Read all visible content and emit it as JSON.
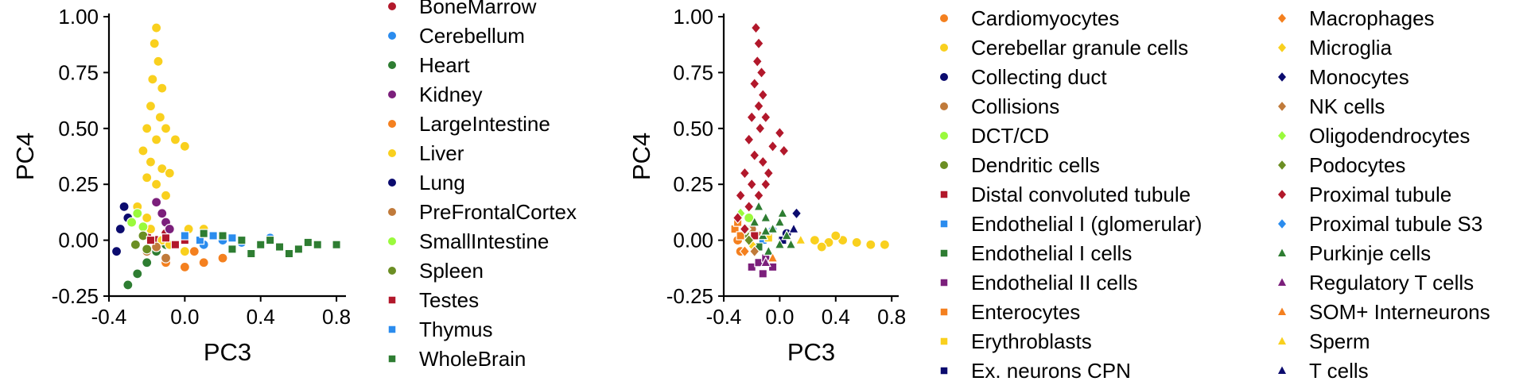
{
  "chart_data": [
    {
      "type": "scatter",
      "xlabel": "PC3",
      "ylabel": "PC4",
      "xlim": [
        -0.4,
        0.85
      ],
      "ylim": [
        -0.25,
        1.0
      ],
      "x_ticks": [
        "-0.4",
        "0.0",
        "0.4",
        "0.8"
      ],
      "x_tick_values": [
        -0.4,
        0.0,
        0.4,
        0.8
      ],
      "y_ticks": [
        "1.00",
        "0.75",
        "0.50",
        "0.25",
        "0.00",
        "-0.25"
      ],
      "y_tick_values": [
        1.0,
        0.75,
        0.5,
        0.25,
        0.0,
        -0.25
      ],
      "grid": false,
      "legend_position": "right",
      "legend": {
        "columns": 1,
        "marker": "mixed"
      },
      "series": [
        {
          "name": "BoneMarrow",
          "color": "#b2182b",
          "marker": "circle",
          "points": [
            [
              -0.2,
              0.02
            ],
            [
              -0.15,
              0.0
            ],
            [
              -0.1,
              0.03
            ]
          ]
        },
        {
          "name": "Cerebellum",
          "color": "#2b8cee",
          "marker": "circle",
          "points": [
            [
              0.1,
              -0.02
            ],
            [
              0.2,
              0.0
            ],
            [
              0.3,
              -0.01
            ],
            [
              0.45,
              0.01
            ]
          ]
        },
        {
          "name": "Heart",
          "color": "#2e7d32",
          "marker": "circle",
          "points": [
            [
              -0.3,
              -0.2
            ],
            [
              -0.25,
              -0.15
            ],
            [
              -0.2,
              -0.1
            ],
            [
              -0.15,
              -0.05
            ],
            [
              -0.1,
              -0.02
            ]
          ]
        },
        {
          "name": "Kidney",
          "color": "#7b1f7b",
          "marker": "circle",
          "points": [
            [
              -0.15,
              0.17
            ],
            [
              -0.12,
              0.12
            ],
            [
              -0.1,
              0.08
            ],
            [
              -0.08,
              0.05
            ]
          ]
        },
        {
          "name": "LargeIntestine",
          "color": "#f4801f",
          "marker": "circle",
          "points": [
            [
              -0.1,
              -0.1
            ],
            [
              0.0,
              -0.12
            ],
            [
              0.1,
              -0.1
            ],
            [
              0.2,
              -0.08
            ],
            [
              0.05,
              -0.05
            ]
          ]
        },
        {
          "name": "Liver",
          "color": "#f9d01e",
          "marker": "circle",
          "points": [
            [
              -0.15,
              0.95
            ],
            [
              -0.16,
              0.88
            ],
            [
              -0.14,
              0.8
            ],
            [
              -0.17,
              0.72
            ],
            [
              -0.12,
              0.68
            ],
            [
              -0.18,
              0.6
            ],
            [
              -0.13,
              0.55
            ],
            [
              -0.2,
              0.5
            ],
            [
              -0.15,
              0.45
            ],
            [
              -0.1,
              0.5
            ],
            [
              -0.05,
              0.45
            ],
            [
              0.0,
              0.42
            ],
            [
              -0.22,
              0.4
            ],
            [
              -0.18,
              0.35
            ],
            [
              -0.12,
              0.32
            ],
            [
              -0.08,
              0.3
            ],
            [
              -0.2,
              0.28
            ],
            [
              -0.15,
              0.25
            ],
            [
              -0.1,
              0.2
            ],
            [
              -0.25,
              0.15
            ],
            [
              -0.2,
              0.1
            ],
            [
              -0.18,
              0.05
            ],
            [
              -0.12,
              0.0
            ],
            [
              -0.08,
              -0.02
            ],
            [
              0.0,
              -0.05
            ],
            [
              0.1,
              0.05
            ],
            [
              0.02,
              0.05
            ]
          ]
        },
        {
          "name": "Lung",
          "color": "#0b0b6e",
          "marker": "circle",
          "points": [
            [
              -0.34,
              0.05
            ],
            [
              -0.32,
              0.15
            ],
            [
              -0.3,
              0.1
            ],
            [
              -0.36,
              -0.05
            ]
          ]
        },
        {
          "name": "PreFrontalCortex",
          "color": "#c07a3a",
          "marker": "circle",
          "points": [
            [
              -0.2,
              -0.05
            ],
            [
              -0.15,
              -0.03
            ],
            [
              -0.1,
              -0.08
            ]
          ]
        },
        {
          "name": "SmallIntestine",
          "color": "#9afa3c",
          "marker": "circle",
          "points": [
            [
              -0.25,
              0.12
            ],
            [
              -0.28,
              0.08
            ],
            [
              -0.22,
              0.06
            ]
          ]
        },
        {
          "name": "Spleen",
          "color": "#6b8e23",
          "marker": "circle",
          "points": [
            [
              -0.22,
              0.02
            ],
            [
              -0.26,
              -0.02
            ],
            [
              -0.2,
              -0.04
            ]
          ]
        },
        {
          "name": "Testes",
          "color": "#b2182b",
          "marker": "square",
          "points": [
            [
              -0.18,
              0.0
            ],
            [
              -0.1,
              0.01
            ],
            [
              0.0,
              0.0
            ],
            [
              -0.05,
              -0.02
            ]
          ]
        },
        {
          "name": "Thymus",
          "color": "#2b8cee",
          "marker": "square",
          "points": [
            [
              0.0,
              0.02
            ],
            [
              0.08,
              0.0
            ],
            [
              0.15,
              0.02
            ],
            [
              0.25,
              0.01
            ]
          ]
        },
        {
          "name": "WholeBrain",
          "color": "#2e7d32",
          "marker": "square",
          "points": [
            [
              0.1,
              0.03
            ],
            [
              0.2,
              0.02
            ],
            [
              0.3,
              0.0
            ],
            [
              0.4,
              -0.02
            ],
            [
              0.5,
              -0.03
            ],
            [
              0.6,
              -0.04
            ],
            [
              0.7,
              -0.02
            ],
            [
              0.8,
              -0.02
            ],
            [
              0.35,
              -0.06
            ],
            [
              0.55,
              -0.06
            ],
            [
              0.25,
              -0.04
            ],
            [
              0.45,
              0.0
            ],
            [
              0.65,
              -0.01
            ]
          ]
        }
      ]
    },
    {
      "type": "scatter",
      "xlabel": "PC3",
      "ylabel": "PC4",
      "xlim": [
        -0.4,
        0.85
      ],
      "ylim": [
        -0.25,
        1.0
      ],
      "x_ticks": [
        "-0.4",
        "0.0",
        "0.4",
        "0.8"
      ],
      "x_tick_values": [
        -0.4,
        0.0,
        0.4,
        0.8
      ],
      "y_ticks": [
        "1.00",
        "0.75",
        "0.50",
        "0.25",
        "0.00",
        "-0.25"
      ],
      "y_tick_values": [
        1.0,
        0.75,
        0.5,
        0.25,
        0.0,
        -0.25
      ],
      "grid": false,
      "legend_position": "right",
      "legend": {
        "columns": 2,
        "marker": "mixed"
      },
      "series": [
        {
          "name": "Cardiomyocytes",
          "color": "#f4801f",
          "marker": "circle",
          "points": [
            [
              -0.3,
              0.0
            ],
            [
              -0.28,
              -0.05
            ]
          ]
        },
        {
          "name": "Cerebellar granule cells",
          "color": "#f9d01e",
          "marker": "circle",
          "points": [
            [
              0.25,
              0.0
            ],
            [
              0.35,
              -0.01
            ],
            [
              0.45,
              0.0
            ],
            [
              0.55,
              -0.01
            ],
            [
              0.65,
              -0.02
            ],
            [
              0.75,
              -0.02
            ],
            [
              0.4,
              0.02
            ],
            [
              0.3,
              -0.03
            ]
          ]
        },
        {
          "name": "Collecting duct",
          "color": "#0b0b6e",
          "marker": "circle",
          "points": [
            [
              0.05,
              0.03
            ]
          ]
        },
        {
          "name": "Collisions",
          "color": "#c07a3a",
          "marker": "circle",
          "points": [
            [
              -0.2,
              0.05
            ],
            [
              -0.15,
              0.02
            ]
          ]
        },
        {
          "name": "DCT/CD",
          "color": "#9afa3c",
          "marker": "circle",
          "points": [
            [
              -0.22,
              0.1
            ]
          ]
        },
        {
          "name": "Dendritic cells",
          "color": "#6b8e23",
          "marker": "circle",
          "points": [
            [
              -0.25,
              0.03
            ]
          ]
        },
        {
          "name": "Distal convoluted tubule",
          "color": "#b2182b",
          "marker": "square",
          "points": [
            [
              -0.18,
              0.02
            ]
          ]
        },
        {
          "name": "Endothelial I (glomerular)",
          "color": "#2b8cee",
          "marker": "square",
          "points": [
            [
              -0.12,
              0.0
            ]
          ]
        },
        {
          "name": "Endothelial I cells",
          "color": "#2e7d32",
          "marker": "square",
          "points": [
            [
              -0.15,
              -0.03
            ]
          ]
        },
        {
          "name": "Endothelial II cells",
          "color": "#7b1f7b",
          "marker": "square",
          "points": [
            [
              -0.2,
              -0.12
            ],
            [
              -0.15,
              -0.1
            ],
            [
              -0.1,
              -0.08
            ],
            [
              -0.05,
              -0.12
            ],
            [
              -0.12,
              -0.15
            ]
          ]
        },
        {
          "name": "Enterocytes",
          "color": "#f4801f",
          "marker": "square",
          "points": [
            [
              -0.32,
              0.05
            ],
            [
              -0.3,
              0.08
            ],
            [
              -0.28,
              0.02
            ]
          ]
        },
        {
          "name": "Erythroblasts",
          "color": "#f9d01e",
          "marker": "square",
          "points": [
            [
              -0.08,
              0.01
            ]
          ]
        },
        {
          "name": "Ex. neurons CPN",
          "color": "#0b0b6e",
          "marker": "square",
          "points": [
            [
              0.02,
              0.0
            ]
          ]
        },
        {
          "name": "Macrophages",
          "color": "#f4801f",
          "marker": "diamond",
          "points": [
            [
              -0.25,
              -0.05
            ]
          ]
        },
        {
          "name": "Microglia",
          "color": "#f9d01e",
          "marker": "diamond",
          "points": [
            [
              -0.2,
              -0.02
            ]
          ]
        },
        {
          "name": "Monocytes",
          "color": "#0b0b6e",
          "marker": "diamond",
          "points": [
            [
              0.12,
              0.12
            ]
          ]
        },
        {
          "name": "NK cells",
          "color": "#c07a3a",
          "marker": "diamond",
          "points": [
            [
              -0.18,
              -0.05
            ]
          ]
        },
        {
          "name": "Oligodendrocytes",
          "color": "#9afa3c",
          "marker": "diamond",
          "points": [
            [
              -0.28,
              0.12
            ],
            [
              -0.24,
              0.05
            ]
          ]
        },
        {
          "name": "Podocytes",
          "color": "#6b8e23",
          "marker": "diamond",
          "points": [
            [
              -0.22,
              0.0
            ]
          ]
        },
        {
          "name": "Proximal tubule",
          "color": "#b2182b",
          "marker": "diamond",
          "points": [
            [
              -0.17,
              0.95
            ],
            [
              -0.15,
              0.88
            ],
            [
              -0.16,
              0.8
            ],
            [
              -0.13,
              0.75
            ],
            [
              -0.18,
              0.7
            ],
            [
              -0.12,
              0.65
            ],
            [
              -0.15,
              0.6
            ],
            [
              -0.2,
              0.55
            ],
            [
              -0.1,
              0.55
            ],
            [
              -0.14,
              0.5
            ],
            [
              0.0,
              0.48
            ],
            [
              -0.05,
              0.42
            ],
            [
              0.03,
              0.4
            ],
            [
              -0.22,
              0.45
            ],
            [
              -0.18,
              0.38
            ],
            [
              -0.12,
              0.35
            ],
            [
              -0.08,
              0.3
            ],
            [
              -0.25,
              0.3
            ],
            [
              -0.2,
              0.25
            ],
            [
              -0.15,
              0.2
            ],
            [
              -0.1,
              0.25
            ],
            [
              -0.28,
              0.2
            ],
            [
              -0.22,
              0.15
            ],
            [
              -0.3,
              0.1
            ],
            [
              -0.25,
              0.05
            ]
          ]
        },
        {
          "name": "Proximal tubule S3",
          "color": "#2b8cee",
          "marker": "diamond",
          "points": [
            [
              -0.05,
              0.05
            ]
          ]
        },
        {
          "name": "Purkinje cells",
          "color": "#2e7d32",
          "marker": "triangle",
          "points": [
            [
              -0.15,
              0.15
            ],
            [
              -0.1,
              0.1
            ],
            [
              -0.05,
              0.05
            ],
            [
              0.0,
              0.08
            ],
            [
              -0.12,
              0.02
            ],
            [
              0.05,
              0.02
            ],
            [
              0.0,
              -0.02
            ],
            [
              -0.08,
              -0.05
            ],
            [
              0.08,
              -0.02
            ],
            [
              -0.18,
              0.08
            ],
            [
              0.02,
              0.12
            ],
            [
              -0.1,
              0.04
            ]
          ]
        },
        {
          "name": "Regulatory T cells",
          "color": "#7b1f7b",
          "marker": "triangle",
          "points": [
            [
              -0.1,
              -0.1
            ]
          ]
        },
        {
          "name": "SOM+ Interneurons",
          "color": "#f4801f",
          "marker": "triangle",
          "points": [
            [
              -0.05,
              -0.08
            ]
          ]
        },
        {
          "name": "Sperm",
          "color": "#f9d01e",
          "marker": "triangle",
          "points": [
            [
              0.15,
              0.0
            ]
          ]
        },
        {
          "name": "T cells",
          "color": "#0b0b6e",
          "marker": "triangle",
          "points": [
            [
              0.1,
              0.05
            ]
          ]
        }
      ]
    }
  ]
}
